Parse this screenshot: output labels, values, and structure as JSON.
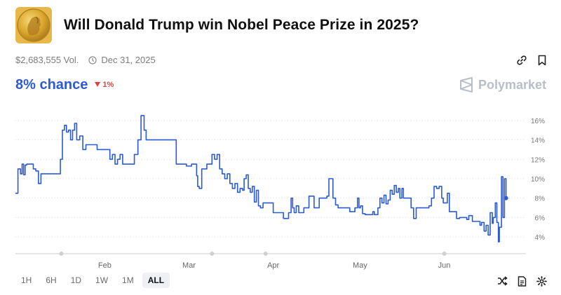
{
  "market": {
    "title": "Will Donald Trump win Nobel Peace Prize in 2025?",
    "volume": "$2,683,555 Vol.",
    "end_date": "Dec 31, 2025",
    "chance": "8% chance",
    "delta": "1%",
    "brand": "Polymarket"
  },
  "icons": {
    "medal": "nobel-medal-icon",
    "clock": "clock-icon",
    "link": "link-icon",
    "bookmark": "bookmark-icon",
    "brand": "polymarket-logo-icon",
    "shuffle": "shuffle-icon",
    "document": "document-icon",
    "settings": "gear-icon"
  },
  "colors": {
    "line": "#2b5ad8",
    "delta": "#e0413b",
    "grid": "#dcdcdc"
  },
  "ranges": [
    "1H",
    "6H",
    "1D",
    "1W",
    "1M",
    "ALL"
  ],
  "active_range": "ALL",
  "chart_data": {
    "type": "line",
    "title": "",
    "xlabel": "",
    "ylabel": "",
    "y_axis_side": "right",
    "ylim": [
      3,
      17
    ],
    "y_ticks": [
      4,
      6,
      8,
      10,
      12,
      14,
      16
    ],
    "y_tick_labels": [
      "4%",
      "6%",
      "8%",
      "10%",
      "12%",
      "14%",
      "16%"
    ],
    "grid": true,
    "x_ticks": [
      {
        "label": "Feb",
        "pos": 0.175
      },
      {
        "label": "Mar",
        "pos": 0.34
      },
      {
        "label": "Apr",
        "pos": 0.505
      },
      {
        "label": "May",
        "pos": 0.675
      },
      {
        "label": "Jun",
        "pos": 0.84
      }
    ],
    "series": [
      {
        "values": [
          [
            0.0,
            8.5
          ],
          [
            0.005,
            11.0
          ],
          [
            0.01,
            10.5
          ],
          [
            0.013,
            11.5
          ],
          [
            0.016,
            10.4
          ],
          [
            0.019,
            11.4
          ],
          [
            0.022,
            11.5
          ],
          [
            0.03,
            11.5
          ],
          [
            0.035,
            11.0
          ],
          [
            0.04,
            10.8
          ],
          [
            0.045,
            9.5
          ],
          [
            0.05,
            10.5
          ],
          [
            0.055,
            10.5
          ],
          [
            0.085,
            10.5
          ],
          [
            0.088,
            12.0
          ],
          [
            0.092,
            15.0
          ],
          [
            0.096,
            15.5
          ],
          [
            0.1,
            14.8
          ],
          [
            0.104,
            15.0
          ],
          [
            0.108,
            14.0
          ],
          [
            0.112,
            15.0
          ],
          [
            0.116,
            15.7
          ],
          [
            0.12,
            14.0
          ],
          [
            0.126,
            14.4
          ],
          [
            0.132,
            13.0
          ],
          [
            0.138,
            13.5
          ],
          [
            0.15,
            13.5
          ],
          [
            0.16,
            13.0
          ],
          [
            0.18,
            13.0
          ],
          [
            0.185,
            12.0
          ],
          [
            0.19,
            12.5
          ],
          [
            0.195,
            11.5
          ],
          [
            0.2,
            12.0
          ],
          [
            0.205,
            12.5
          ],
          [
            0.21,
            11.5
          ],
          [
            0.23,
            11.5
          ],
          [
            0.233,
            12.5
          ],
          [
            0.24,
            14.0
          ],
          [
            0.246,
            16.5
          ],
          [
            0.252,
            15.0
          ],
          [
            0.256,
            14.0
          ],
          [
            0.262,
            14.0
          ],
          [
            0.3,
            14.0
          ],
          [
            0.31,
            14.0
          ],
          [
            0.315,
            11.5
          ],
          [
            0.33,
            11.5
          ],
          [
            0.335,
            11.3
          ],
          [
            0.345,
            11.5
          ],
          [
            0.355,
            10.3
          ],
          [
            0.357,
            9.2
          ],
          [
            0.36,
            9.0
          ],
          [
            0.365,
            11.0
          ],
          [
            0.375,
            11.5
          ],
          [
            0.385,
            12.5
          ],
          [
            0.39,
            12.0
          ],
          [
            0.395,
            12.5
          ],
          [
            0.4,
            11.0
          ],
          [
            0.405,
            10.5
          ],
          [
            0.41,
            10.0
          ],
          [
            0.415,
            10.5
          ],
          [
            0.42,
            9.5
          ],
          [
            0.425,
            9.0
          ],
          [
            0.43,
            9.5
          ],
          [
            0.435,
            8.6
          ],
          [
            0.44,
            9.0
          ],
          [
            0.445,
            8.8
          ],
          [
            0.448,
            10.0
          ],
          [
            0.452,
            10.4
          ],
          [
            0.456,
            9.0
          ],
          [
            0.46,
            8.6
          ],
          [
            0.464,
            9.2
          ],
          [
            0.468,
            7.6
          ],
          [
            0.472,
            8.8
          ],
          [
            0.476,
            7.2
          ],
          [
            0.48,
            7.0
          ],
          [
            0.485,
            7.5
          ],
          [
            0.49,
            7.5
          ],
          [
            0.5,
            7.5
          ],
          [
            0.505,
            6.5
          ],
          [
            0.52,
            6.5
          ],
          [
            0.525,
            5.9
          ],
          [
            0.53,
            5.9
          ],
          [
            0.535,
            6.5
          ],
          [
            0.54,
            8.0
          ],
          [
            0.543,
            7.0
          ],
          [
            0.546,
            6.5
          ],
          [
            0.55,
            7.2
          ],
          [
            0.555,
            6.5
          ],
          [
            0.565,
            7.0
          ],
          [
            0.575,
            8.2
          ],
          [
            0.58,
            8.2
          ],
          [
            0.585,
            7.0
          ],
          [
            0.59,
            7.0
          ],
          [
            0.595,
            8.0
          ],
          [
            0.605,
            8.0
          ],
          [
            0.61,
            8.2
          ],
          [
            0.614,
            10.0
          ],
          [
            0.618,
            10.0
          ],
          [
            0.622,
            8.0
          ],
          [
            0.627,
            7.3
          ],
          [
            0.632,
            7.0
          ],
          [
            0.64,
            7.0
          ],
          [
            0.65,
            7.0
          ],
          [
            0.655,
            6.6
          ],
          [
            0.66,
            6.6
          ],
          [
            0.665,
            7.0
          ],
          [
            0.67,
            8.0
          ],
          [
            0.673,
            7.0
          ],
          [
            0.676,
            7.2
          ],
          [
            0.68,
            6.4
          ],
          [
            0.685,
            6.3
          ],
          [
            0.695,
            6.3
          ],
          [
            0.7,
            6.6
          ],
          [
            0.703,
            6.3
          ],
          [
            0.71,
            7.0
          ],
          [
            0.714,
            8.0
          ],
          [
            0.718,
            7.5
          ],
          [
            0.722,
            8.3
          ],
          [
            0.726,
            7.4
          ],
          [
            0.73,
            7.8
          ],
          [
            0.734,
            8.8
          ],
          [
            0.738,
            8.4
          ],
          [
            0.742,
            9.3
          ],
          [
            0.746,
            8.6
          ],
          [
            0.75,
            9.0
          ],
          [
            0.753,
            8.0
          ],
          [
            0.757,
            9.0
          ],
          [
            0.76,
            8.0
          ],
          [
            0.77,
            8.0
          ],
          [
            0.775,
            7.0
          ],
          [
            0.78,
            5.9
          ],
          [
            0.785,
            7.0
          ],
          [
            0.8,
            7.0
          ],
          [
            0.81,
            7.2
          ],
          [
            0.815,
            8.0
          ],
          [
            0.82,
            9.2
          ],
          [
            0.825,
            9.0
          ],
          [
            0.83,
            9.2
          ],
          [
            0.835,
            8.0
          ],
          [
            0.838,
            7.5
          ],
          [
            0.842,
            7.5
          ],
          [
            0.846,
            8.5
          ],
          [
            0.85,
            6.6
          ],
          [
            0.86,
            6.6
          ],
          [
            0.864,
            5.9
          ],
          [
            0.87,
            6.0
          ],
          [
            0.88,
            6.0
          ],
          [
            0.884,
            5.8
          ],
          [
            0.888,
            6.2
          ],
          [
            0.895,
            5.6
          ],
          [
            0.905,
            5.6
          ],
          [
            0.91,
            5.2
          ],
          [
            0.913,
            5.5
          ],
          [
            0.918,
            4.6
          ],
          [
            0.922,
            5.2
          ],
          [
            0.926,
            4.2
          ],
          [
            0.93,
            6.5
          ],
          [
            0.934,
            5.4
          ],
          [
            0.936,
            6.0
          ],
          [
            0.94,
            7.5
          ],
          [
            0.943,
            5.5
          ],
          [
            0.946,
            3.5
          ],
          [
            0.948,
            5.0
          ],
          [
            0.952,
            10.2
          ],
          [
            0.955,
            6.0
          ],
          [
            0.958,
            10.0
          ],
          [
            0.961,
            8.0
          ]
        ]
      }
    ]
  }
}
